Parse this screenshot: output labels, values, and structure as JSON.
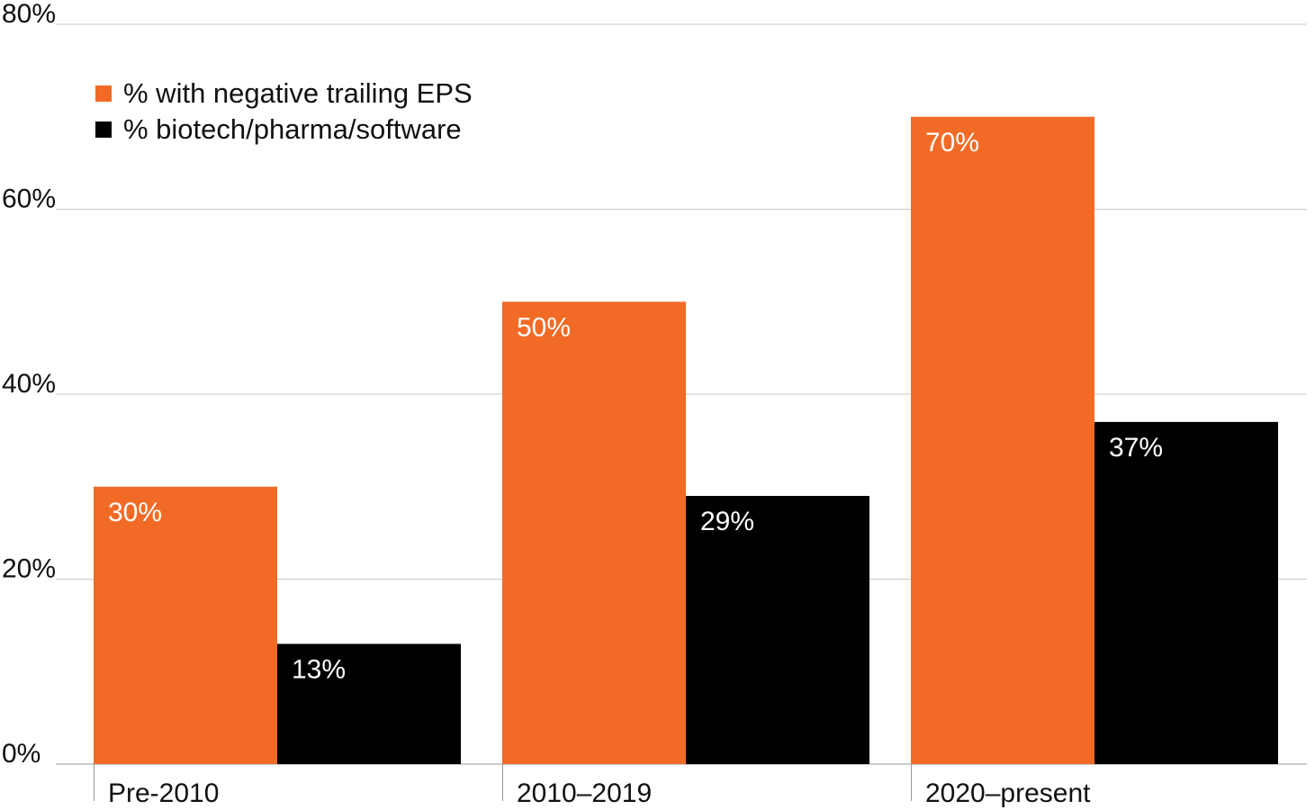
{
  "chart_data": {
    "type": "bar",
    "title": "",
    "xlabel": "",
    "ylabel": "",
    "categories": [
      "Pre-2010",
      "2010–2019",
      "2020–present"
    ],
    "series": [
      {
        "name": "% with negative trailing EPS",
        "color": "#f26b26",
        "values": [
          30,
          50,
          70
        ],
        "labels": [
          "30%",
          "50%",
          "70%"
        ]
      },
      {
        "name": "% biotech/pharma/software",
        "color": "#000000",
        "values": [
          13,
          29,
          37
        ],
        "labels": [
          "13%",
          "29%",
          "37%"
        ]
      }
    ],
    "ylim": [
      0,
      80
    ],
    "yticks": [
      0,
      20,
      40,
      60,
      80
    ],
    "ytick_labels": [
      "0%",
      "20%",
      "40%",
      "60%",
      "80%"
    ],
    "grid": true,
    "legend_position": "top-left"
  }
}
